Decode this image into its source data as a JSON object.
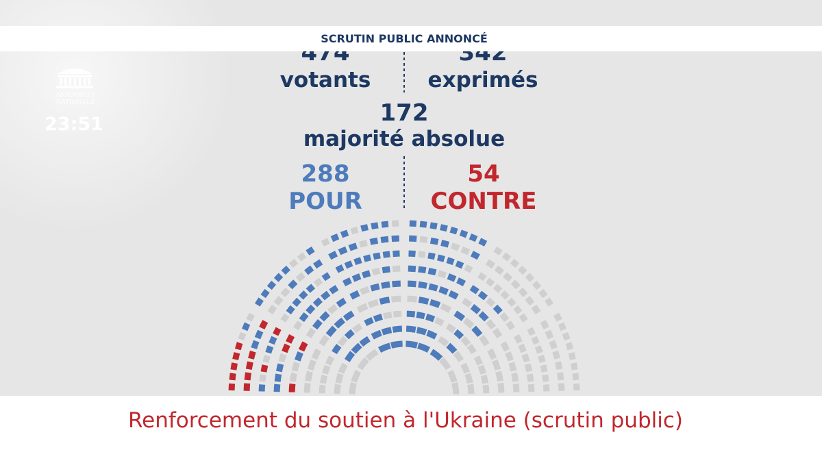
{
  "header": {
    "title": "SCRUTIN PUBLIC ANNONCÉ"
  },
  "logo": {
    "line1": "ASSEMBLÉE",
    "line2": "NATIONALE"
  },
  "clock": "23:51",
  "stats": {
    "votants": {
      "value": 474,
      "label": "votants"
    },
    "exprimes": {
      "value": 342,
      "label": "exprimés"
    },
    "majorite": {
      "value": 172,
      "label": "majorité absolue"
    },
    "pour": {
      "value": 288,
      "label": "POUR"
    },
    "contre": {
      "value": 54,
      "label": "CONTRE"
    }
  },
  "footer": {
    "title": "Renforcement du soutien à l'Ukraine (scrutin public)"
  }
}
